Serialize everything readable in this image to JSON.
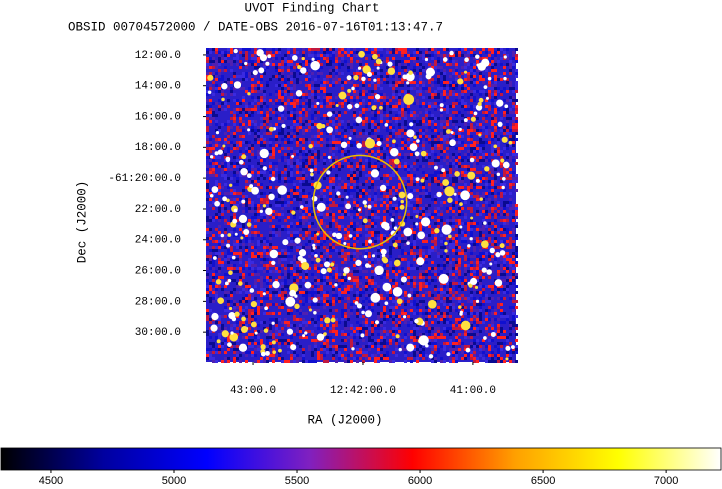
{
  "chart_data": {
    "type": "image",
    "title": "UVOT Finding Chart",
    "subtitle": "OBSID 00704572000 / DATE-OBS 2016-07-16T01:13:47.7",
    "x_label": "RA (J2000)",
    "y_label": "Dec (J2000)",
    "xlim": [
      190.857,
      190.152
    ],
    "xticks": [
      {
        "value": 190.75,
        "label": "43:00.0"
      },
      {
        "value": 190.5,
        "label": "12:42:00.0"
      },
      {
        "value": 190.25,
        "label": "41:00.0"
      }
    ],
    "ylim": [
      -61.5323,
      -61.1925
    ],
    "yticks": [
      {
        "value": -61.2,
        "label": "12:00.0"
      },
      {
        "value": -61.2333,
        "label": "14:00.0"
      },
      {
        "value": -61.2667,
        "label": "16:00.0"
      },
      {
        "value": -61.3,
        "label": "18:00.0"
      },
      {
        "value": -61.3333,
        "label": "-61:20:00.0"
      },
      {
        "value": -61.3667,
        "label": "22:00.0"
      },
      {
        "value": -61.4,
        "label": "24:00.0"
      },
      {
        "value": -61.4333,
        "label": "26:00.0"
      },
      {
        "value": -61.4667,
        "label": "28:00.0"
      },
      {
        "value": -61.5,
        "label": "30:00.0"
      }
    ],
    "region": {
      "ra": 190.5068,
      "dec": -61.3592,
      "radius": 0.0505,
      "color": "#e8c000"
    },
    "colorbar": {
      "clim": [
        4297,
        7223
      ],
      "ticks": [
        4500,
        5000,
        5500,
        6000,
        6500,
        7000
      ],
      "colors": [
        "#000000",
        "#0000a0",
        "#0000ff",
        "#8020c0",
        "#ff0000",
        "#ffa000",
        "#ffff00",
        "#ffffff"
      ]
    }
  }
}
